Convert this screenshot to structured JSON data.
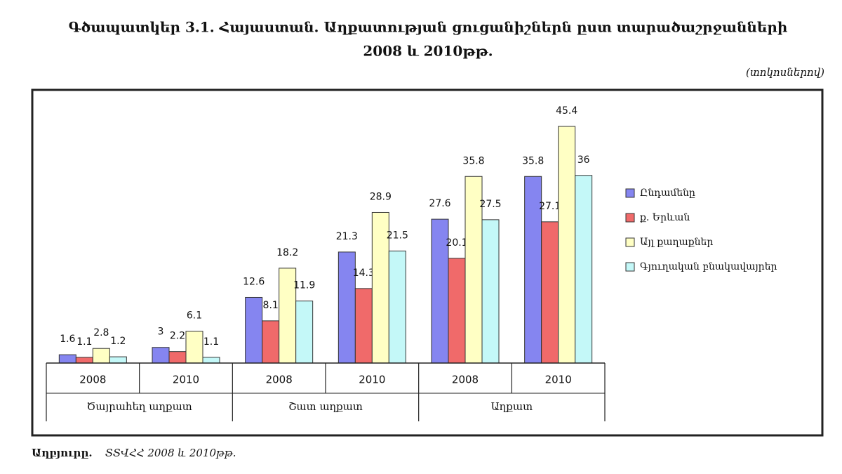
{
  "chart_data": {
    "type": "bar",
    "title": [
      "Գծապատկեր 3.1. Հայաստան. Աղքատության ցուցանիշներն ըստ տարածաշրջանների",
      "2008 և 2010թթ."
    ],
    "unit": "(տոկոսներով)",
    "categories": [
      "2008",
      "2010",
      "2008",
      "2010",
      "2008",
      "2010"
    ],
    "groups": [
      "Ծայրահեղ աղքատ",
      "Շատ աղքատ",
      "Աղքատ"
    ],
    "series": [
      {
        "name": "Ընդամենը",
        "color": "#8585f0",
        "values": [
          1.6,
          3,
          12.6,
          21.3,
          27.6,
          35.8
        ]
      },
      {
        "name": "ք. Երևան",
        "color": "#f06a6a",
        "values": [
          1.1,
          2.2,
          8.1,
          14.3,
          20.1,
          27.1
        ]
      },
      {
        "name": "Այլ քաղաքներ",
        "color": "#ffffc4",
        "values": [
          2.8,
          6.1,
          18.2,
          28.9,
          35.8,
          45.4
        ]
      },
      {
        "name": "Գյուղական բնակավայրեր",
        "color": "#c4f8f8",
        "values": [
          1.2,
          1.1,
          11.9,
          21.5,
          27.5,
          36
        ]
      }
    ],
    "source_label": "Աղբյուրը.",
    "source": "ՏՏՎՀՀ 2008 և 2010թթ."
  }
}
